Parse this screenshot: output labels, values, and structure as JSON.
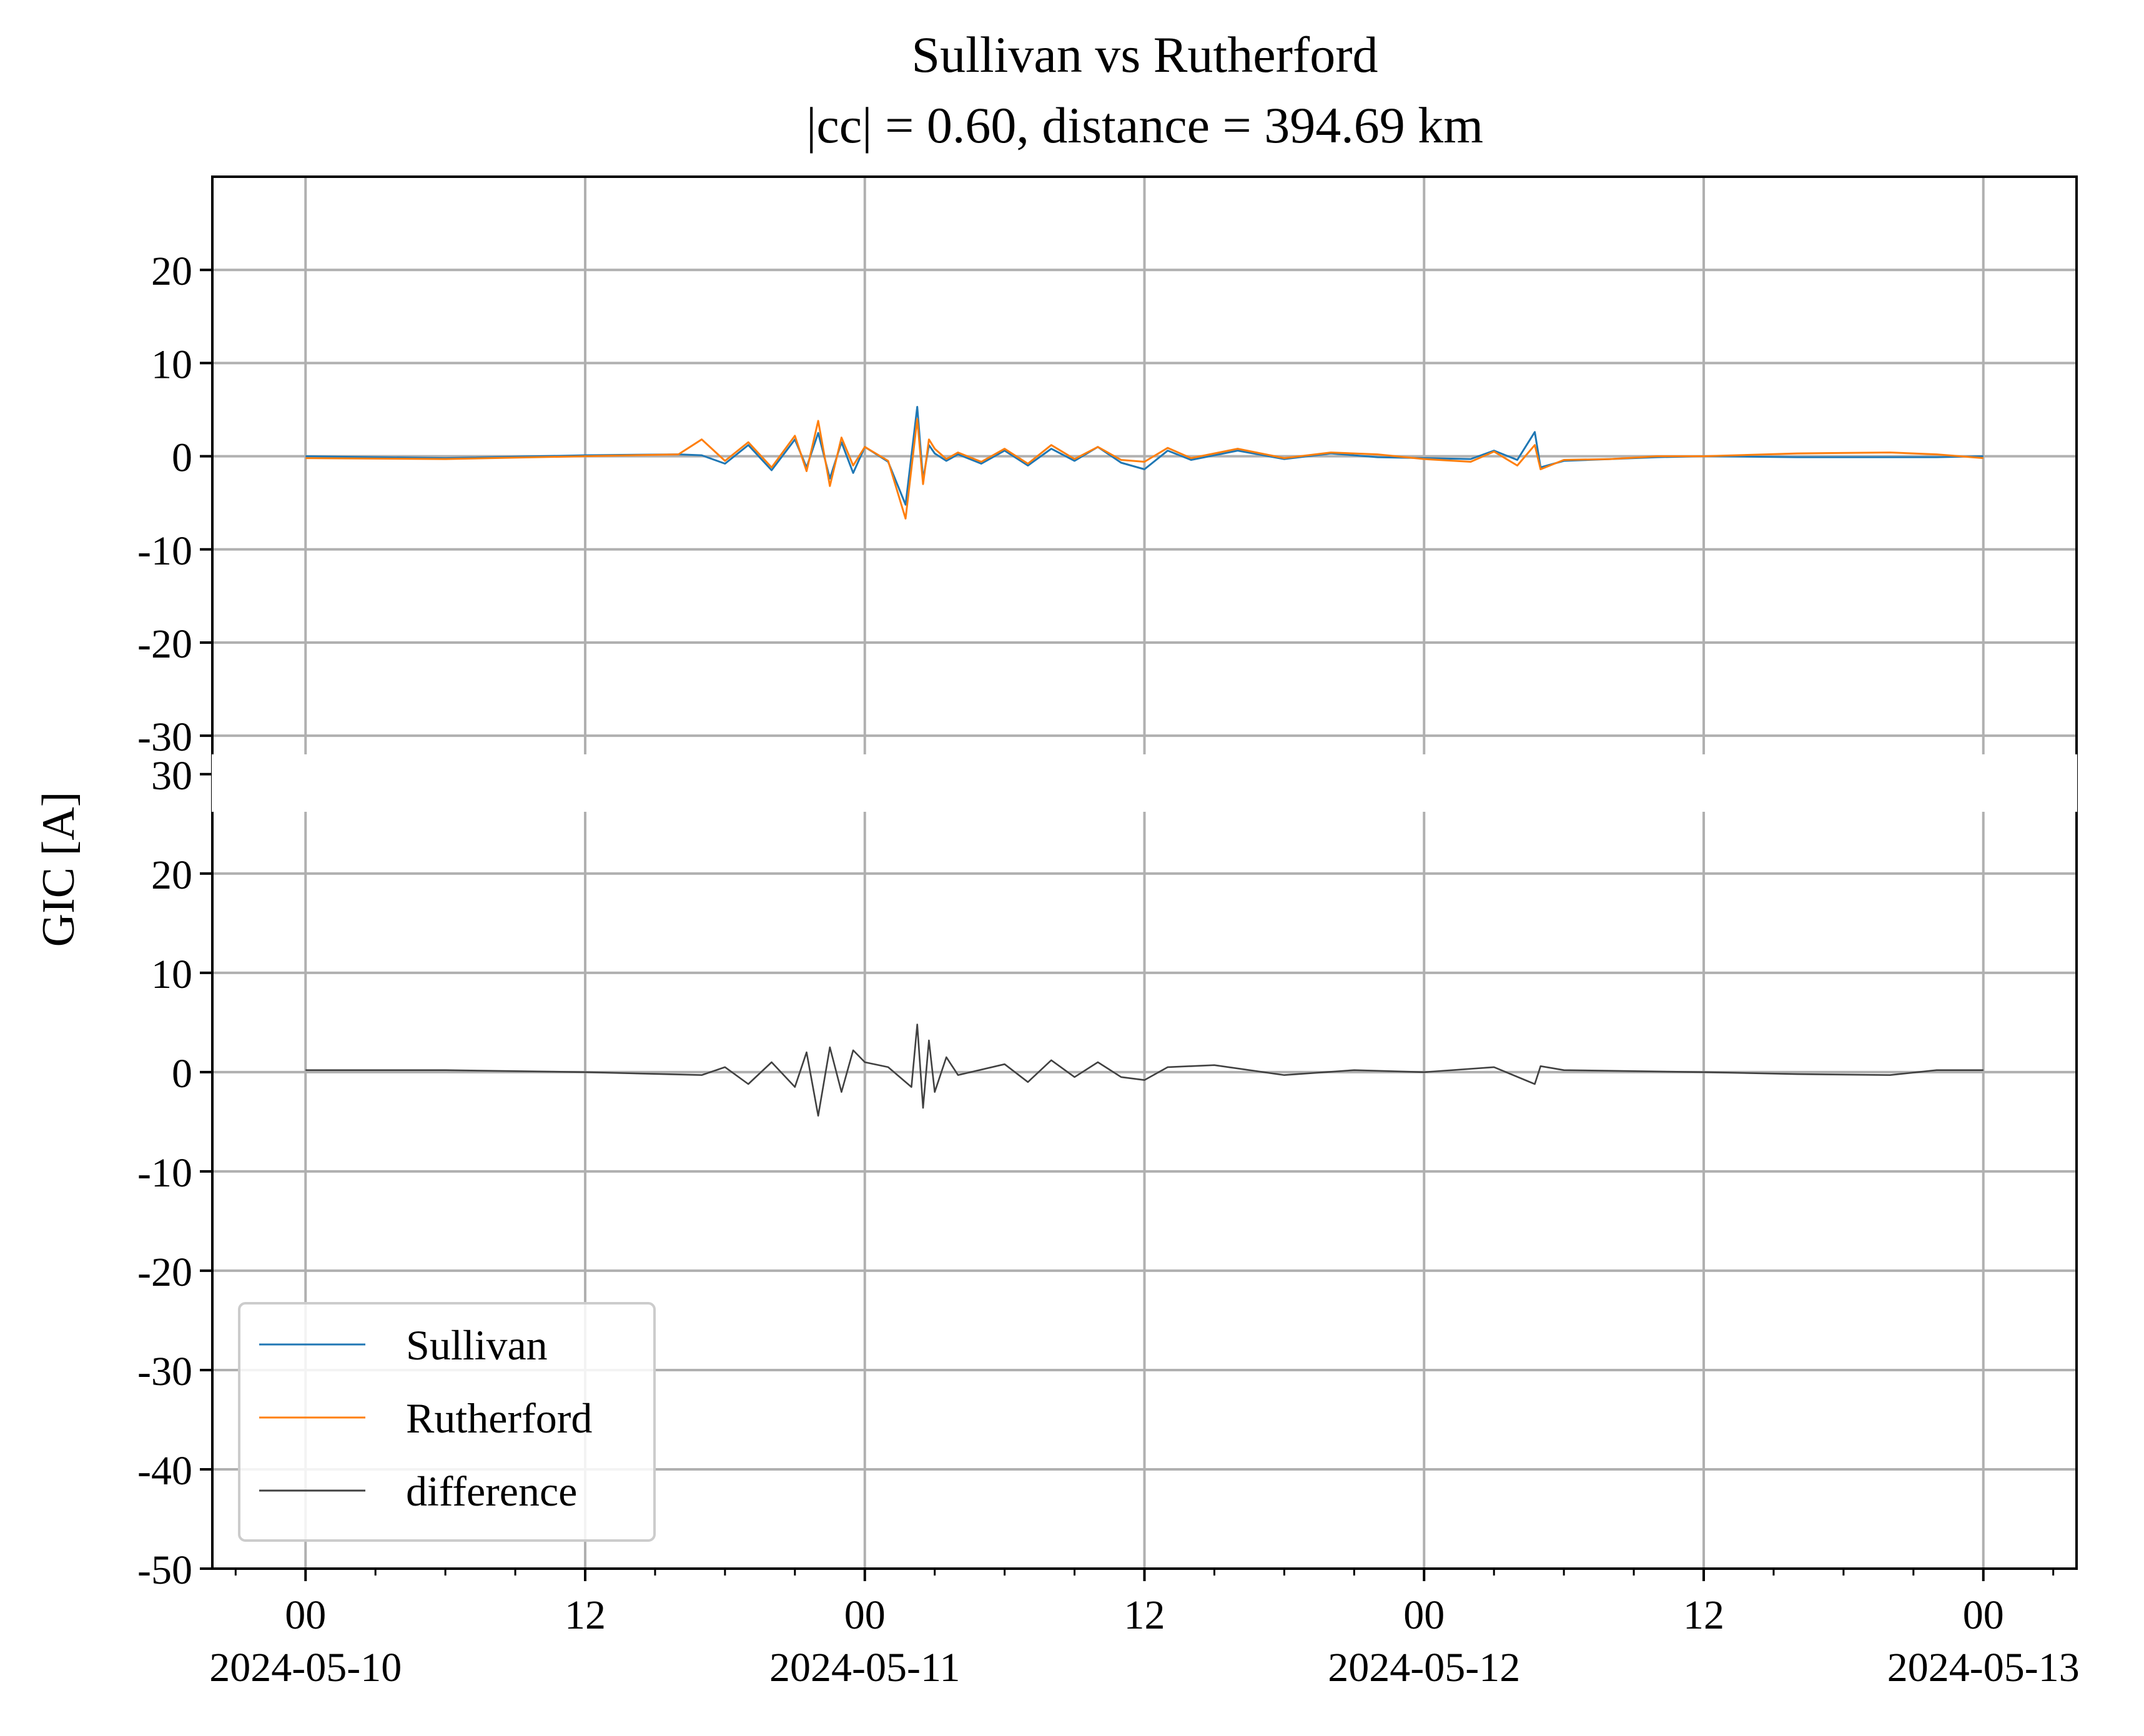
{
  "chart_data": {
    "type": "line",
    "title": "Sullivan vs Rutherford",
    "subtitle": "|cc| = 0.60, distance = 394.69 km",
    "ylabel": "GIC [A]",
    "xlabel": "",
    "xlim": [
      "2024-05-09T20:00",
      "2024-05-13T04:00"
    ],
    "x_ticks": [
      {
        "at": "2024-05-10T00:00",
        "label": "00",
        "date": "2024-05-10"
      },
      {
        "at": "2024-05-10T12:00",
        "label": "12",
        "date": ""
      },
      {
        "at": "2024-05-11T00:00",
        "label": "00",
        "date": "2024-05-11"
      },
      {
        "at": "2024-05-11T12:00",
        "label": "12",
        "date": ""
      },
      {
        "at": "2024-05-12T00:00",
        "label": "00",
        "date": "2024-05-12"
      },
      {
        "at": "2024-05-12T12:00",
        "label": "12",
        "date": ""
      },
      {
        "at": "2024-05-13T00:00",
        "label": "00",
        "date": "2024-05-13"
      }
    ],
    "grid": true,
    "legend": {
      "location": "lower-left",
      "entries": [
        "Sullivan",
        "Rutherford",
        "difference"
      ]
    },
    "panels": [
      {
        "name": "top",
        "ylim": [
          -32,
          30
        ],
        "yticks": [
          20,
          10,
          0,
          -10,
          -20,
          -30
        ],
        "ytick_labels": [
          "20",
          "10",
          "0",
          "-10",
          "-20",
          "-30"
        ],
        "series": [
          {
            "name": "Sullivan",
            "color": "#1f77b4",
            "x": [
              "2024-05-10T00:00",
              "2024-05-10T06:00",
              "2024-05-10T12:00",
              "2024-05-10T16:00",
              "2024-05-10T17:00",
              "2024-05-10T18:00",
              "2024-05-10T19:00",
              "2024-05-10T20:00",
              "2024-05-10T21:00",
              "2024-05-10T21:30",
              "2024-05-10T22:00",
              "2024-05-10T22:30",
              "2024-05-10T23:00",
              "2024-05-10T23:30",
              "2024-05-11T00:00",
              "2024-05-11T01:00",
              "2024-05-11T01:45",
              "2024-05-11T02:15",
              "2024-05-11T02:30",
              "2024-05-11T02:45",
              "2024-05-11T03:00",
              "2024-05-11T03:30",
              "2024-05-11T04:00",
              "2024-05-11T05:00",
              "2024-05-11T06:00",
              "2024-05-11T07:00",
              "2024-05-11T08:00",
              "2024-05-11T09:00",
              "2024-05-11T10:00",
              "2024-05-11T11:00",
              "2024-05-11T12:00",
              "2024-05-11T13:00",
              "2024-05-11T14:00",
              "2024-05-11T16:00",
              "2024-05-11T18:00",
              "2024-05-11T20:00",
              "2024-05-11T22:00",
              "2024-05-12T00:00",
              "2024-05-12T02:00",
              "2024-05-12T03:00",
              "2024-05-12T04:00",
              "2024-05-12T04:45",
              "2024-05-12T05:00",
              "2024-05-12T06:00",
              "2024-05-12T08:00",
              "2024-05-12T10:00",
              "2024-05-12T12:00",
              "2024-05-12T16:00",
              "2024-05-12T20:00",
              "2024-05-12T22:00",
              "2024-05-13T00:00"
            ],
            "y": [
              0.0,
              -0.2,
              0.1,
              0.2,
              0.1,
              -0.8,
              1.2,
              -1.5,
              1.8,
              -1.2,
              2.5,
              -2.4,
              1.5,
              -1.8,
              1.0,
              -0.6,
              -5.2,
              5.3,
              -2.5,
              1.2,
              0.3,
              -0.5,
              0.2,
              -0.8,
              0.6,
              -1.0,
              0.8,
              -0.5,
              1.0,
              -0.7,
              -1.4,
              0.6,
              -0.4,
              0.6,
              -0.3,
              0.3,
              -0.1,
              -0.2,
              -0.3,
              0.6,
              -0.4,
              2.6,
              -1.2,
              -0.5,
              -0.3,
              -0.1,
              0.0,
              -0.1,
              -0.1,
              -0.1,
              0.0
            ]
          },
          {
            "name": "Rutherford",
            "color": "#ff7f0e",
            "x": [
              "2024-05-10T00:00",
              "2024-05-10T06:00",
              "2024-05-10T12:00",
              "2024-05-10T16:00",
              "2024-05-10T17:00",
              "2024-05-10T18:00",
              "2024-05-10T19:00",
              "2024-05-10T20:00",
              "2024-05-10T21:00",
              "2024-05-10T21:30",
              "2024-05-10T22:00",
              "2024-05-10T22:30",
              "2024-05-10T23:00",
              "2024-05-10T23:30",
              "2024-05-11T00:00",
              "2024-05-11T01:00",
              "2024-05-11T01:45",
              "2024-05-11T02:15",
              "2024-05-11T02:30",
              "2024-05-11T02:45",
              "2024-05-11T03:00",
              "2024-05-11T03:30",
              "2024-05-11T04:00",
              "2024-05-11T05:00",
              "2024-05-11T06:00",
              "2024-05-11T07:00",
              "2024-05-11T08:00",
              "2024-05-11T09:00",
              "2024-05-11T10:00",
              "2024-05-11T11:00",
              "2024-05-11T12:00",
              "2024-05-11T13:00",
              "2024-05-11T14:00",
              "2024-05-11T16:00",
              "2024-05-11T18:00",
              "2024-05-11T20:00",
              "2024-05-11T22:00",
              "2024-05-12T00:00",
              "2024-05-12T02:00",
              "2024-05-12T03:00",
              "2024-05-12T04:00",
              "2024-05-12T04:45",
              "2024-05-12T05:00",
              "2024-05-12T06:00",
              "2024-05-12T08:00",
              "2024-05-12T10:00",
              "2024-05-12T12:00",
              "2024-05-12T16:00",
              "2024-05-12T20:00",
              "2024-05-12T22:00",
              "2024-05-13T00:00"
            ],
            "y": [
              -0.2,
              -0.3,
              0.0,
              0.2,
              1.8,
              -0.5,
              1.5,
              -1.2,
              2.2,
              -1.6,
              3.8,
              -3.2,
              2.0,
              -1.0,
              1.0,
              -0.5,
              -6.7,
              4.0,
              -3.0,
              1.8,
              0.8,
              -0.3,
              0.4,
              -0.6,
              0.8,
              -0.8,
              1.2,
              -0.3,
              1.0,
              -0.4,
              -0.6,
              0.9,
              -0.2,
              0.8,
              -0.2,
              0.4,
              0.2,
              -0.3,
              -0.6,
              0.5,
              -1.0,
              1.2,
              -1.4,
              -0.4,
              -0.3,
              0.0,
              0.0,
              0.3,
              0.4,
              0.2,
              -0.2
            ]
          }
        ]
      },
      {
        "name": "bottom",
        "ylim": [
          -50,
          32
        ],
        "yticks": [
          30,
          20,
          10,
          0,
          -10,
          -20,
          -30,
          -40,
          -50
        ],
        "ytick_labels": [
          "30",
          "20",
          "10",
          "0",
          "-10",
          "-20",
          "-30",
          "-40",
          "-50"
        ],
        "series": [
          {
            "name": "difference",
            "color": "#404040",
            "x": [
              "2024-05-10T00:00",
              "2024-05-10T06:00",
              "2024-05-10T12:00",
              "2024-05-10T17:00",
              "2024-05-10T18:00",
              "2024-05-10T19:00",
              "2024-05-10T20:00",
              "2024-05-10T21:00",
              "2024-05-10T21:30",
              "2024-05-10T22:00",
              "2024-05-10T22:30",
              "2024-05-10T23:00",
              "2024-05-10T23:30",
              "2024-05-11T00:00",
              "2024-05-11T01:00",
              "2024-05-11T02:00",
              "2024-05-11T02:15",
              "2024-05-11T02:30",
              "2024-05-11T02:45",
              "2024-05-11T03:00",
              "2024-05-11T03:30",
              "2024-05-11T04:00",
              "2024-05-11T06:00",
              "2024-05-11T07:00",
              "2024-05-11T08:00",
              "2024-05-11T09:00",
              "2024-05-11T10:00",
              "2024-05-11T11:00",
              "2024-05-11T12:00",
              "2024-05-11T13:00",
              "2024-05-11T15:00",
              "2024-05-11T18:00",
              "2024-05-11T21:00",
              "2024-05-12T00:00",
              "2024-05-12T03:00",
              "2024-05-12T04:45",
              "2024-05-12T05:00",
              "2024-05-12T06:00",
              "2024-05-12T12:00",
              "2024-05-12T16:00",
              "2024-05-12T20:00",
              "2024-05-12T22:00",
              "2024-05-13T00:00"
            ],
            "y": [
              0.2,
              0.2,
              0.0,
              -0.3,
              0.5,
              -1.2,
              1.0,
              -1.5,
              2.0,
              -4.4,
              2.5,
              -2.0,
              2.2,
              1.0,
              0.5,
              -1.5,
              4.8,
              -3.6,
              3.2,
              -2.0,
              1.5,
              -0.3,
              0.8,
              -1.0,
              1.2,
              -0.5,
              1.0,
              -0.5,
              -0.8,
              0.5,
              0.7,
              -0.3,
              0.2,
              0.0,
              0.5,
              -1.2,
              0.6,
              0.2,
              0.0,
              -0.2,
              -0.3,
              0.2,
              0.2
            ]
          }
        ]
      }
    ]
  }
}
